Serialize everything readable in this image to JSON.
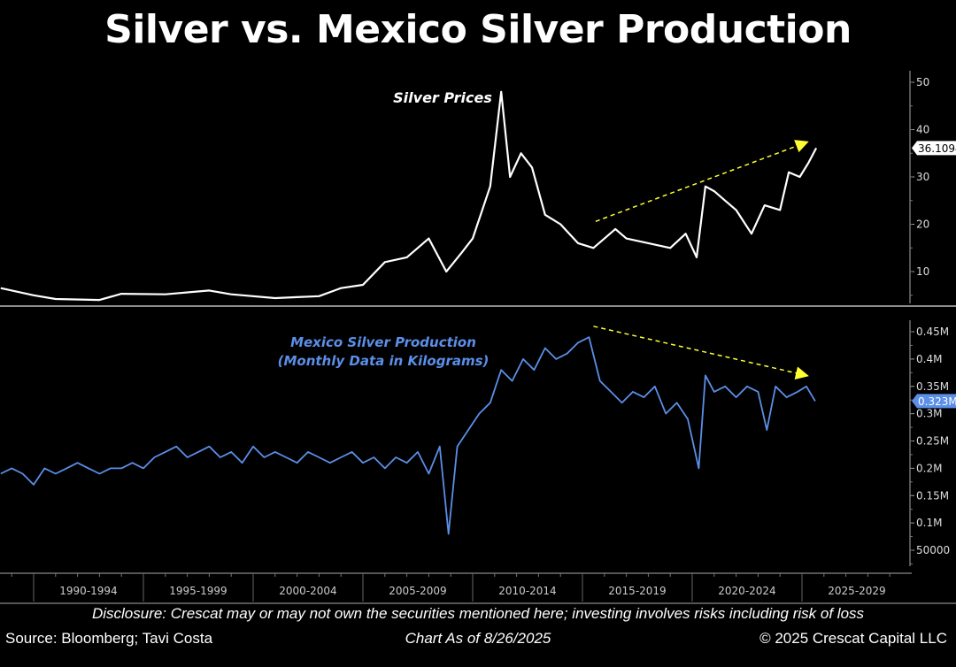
{
  "title": "Silver vs. Mexico Silver Production",
  "footer": {
    "disclosure": "Disclosure: Crescat may or may not own the securities mentioned here; investing involves risks including risk of loss",
    "source": "Source: Bloomberg; Tavi Costa",
    "as_of": "Chart As of 8/26/2025",
    "copyright": "© 2025 Crescat Capital LLC"
  },
  "chart_data": [
    {
      "type": "line",
      "series_label": "Silver Prices",
      "color": "#ffffff",
      "ylim": [
        3,
        52
      ],
      "xlim": [
        1988.5,
        2030
      ],
      "yticks": [
        10,
        20,
        30,
        40,
        50
      ],
      "last_value_label": "36.1094",
      "x": [
        1988.5,
        1990,
        1991,
        1993,
        1994,
        1996,
        1998,
        1999,
        2001,
        2002,
        2003,
        2004,
        2005,
        2006,
        2007,
        2008,
        2008.8,
        2009.5,
        2010,
        2010.8,
        2011.3,
        2011.7,
        2012.2,
        2012.7,
        2013.3,
        2014,
        2014.8,
        2015.5,
        2016.5,
        2017,
        2018,
        2019,
        2019.7,
        2020.2,
        2020.6,
        2021,
        2021.5,
        2022,
        2022.7,
        2023.3,
        2024,
        2024.4,
        2024.9,
        2025.3,
        2025.65
      ],
      "y": [
        6.5,
        5,
        4.2,
        4,
        5.3,
        5.2,
        6,
        5.2,
        4.4,
        4.6,
        4.8,
        6.5,
        7.2,
        12,
        13,
        17,
        10,
        14,
        17,
        28,
        48,
        30,
        35,
        32,
        22,
        20,
        16,
        15,
        19,
        17,
        16,
        15,
        18,
        13,
        28,
        27,
        25,
        23,
        18,
        24,
        23,
        31,
        30,
        33,
        36.1
      ],
      "annotation_arrow": {
        "from": [
          2015.6,
          20.6
        ],
        "to": [
          2025.2,
          37.3
        ],
        "color": "#ffff33",
        "style": "dashed"
      }
    },
    {
      "type": "line",
      "series_label": "Mexico Silver Production",
      "series_sublabel": "(Monthly Data in Kilograms)",
      "color": "#5b8fe8",
      "ylim": [
        0.03,
        0.46
      ],
      "xlim": [
        1988.5,
        2030
      ],
      "yticks": [
        0.05,
        0.1,
        0.15,
        0.2,
        0.25,
        0.3,
        0.35,
        0.4,
        0.45
      ],
      "ytick_labels": [
        "50000",
        "0.1M",
        "0.15M",
        "0.2M",
        "0.25M",
        "0.3M",
        "0.35M",
        "0.4M",
        "0.45M"
      ],
      "last_value_label": "0.323M",
      "x": [
        1988.5,
        1989,
        1989.5,
        1990,
        1990.5,
        1991,
        1991.5,
        1992,
        1992.5,
        1993,
        1993.5,
        1994,
        1994.5,
        1995,
        1995.5,
        1996,
        1996.5,
        1997,
        1997.5,
        1998,
        1998.5,
        1999,
        1999.5,
        2000,
        2000.5,
        2001,
        2001.5,
        2002,
        2002.5,
        2003,
        2003.5,
        2004,
        2004.5,
        2005,
        2005.5,
        2006,
        2006.5,
        2007,
        2007.5,
        2008,
        2008.5,
        2008.9,
        2009.3,
        2009.8,
        2010.3,
        2010.8,
        2011.3,
        2011.8,
        2012.3,
        2012.8,
        2013.3,
        2013.8,
        2014.3,
        2014.8,
        2015.3,
        2015.8,
        2016.3,
        2016.8,
        2017.3,
        2017.8,
        2018.3,
        2018.8,
        2019.3,
        2019.8,
        2020.3,
        2020.6,
        2021,
        2021.5,
        2022,
        2022.5,
        2023,
        2023.4,
        2023.8,
        2024.3,
        2024.8,
        2025.2,
        2025.6
      ],
      "y": [
        0.19,
        0.2,
        0.19,
        0.17,
        0.2,
        0.19,
        0.2,
        0.21,
        0.2,
        0.19,
        0.2,
        0.2,
        0.21,
        0.2,
        0.22,
        0.23,
        0.24,
        0.22,
        0.23,
        0.24,
        0.22,
        0.23,
        0.21,
        0.24,
        0.22,
        0.23,
        0.22,
        0.21,
        0.23,
        0.22,
        0.21,
        0.22,
        0.23,
        0.21,
        0.22,
        0.2,
        0.22,
        0.21,
        0.23,
        0.19,
        0.24,
        0.08,
        0.24,
        0.27,
        0.3,
        0.32,
        0.38,
        0.36,
        0.4,
        0.38,
        0.42,
        0.4,
        0.41,
        0.43,
        0.44,
        0.36,
        0.34,
        0.32,
        0.34,
        0.33,
        0.35,
        0.3,
        0.32,
        0.29,
        0.2,
        0.37,
        0.34,
        0.35,
        0.33,
        0.35,
        0.34,
        0.27,
        0.35,
        0.33,
        0.34,
        0.35,
        0.323
      ],
      "annotation_arrow": {
        "from": [
          2015.5,
          0.46
        ],
        "to": [
          2025.2,
          0.37
        ],
        "color": "#ffff33",
        "style": "dashed"
      }
    }
  ],
  "x_axis": {
    "tick_labels": [
      "1990-1994",
      "1995-1999",
      "2000-2004",
      "2005-2009",
      "2010-2014",
      "2015-2019",
      "2020-2024",
      "2025-2029"
    ],
    "tick_starts": [
      1990,
      1995,
      2000,
      2005,
      2010,
      2015,
      2020,
      2025
    ]
  }
}
